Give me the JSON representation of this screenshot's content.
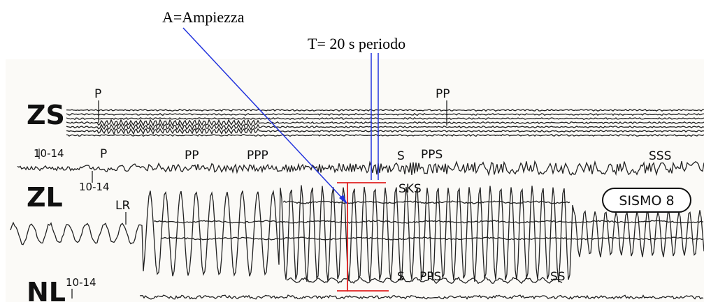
{
  "annotations": {
    "amplitude": "A=Ampiezza",
    "period": "T= 20 s periodo"
  },
  "seismogram": {
    "channels": [
      "ZS",
      "ZL",
      "NL"
    ],
    "time_marks": [
      "10-14",
      "10-14",
      "10-14"
    ],
    "phases": [
      "P",
      "PP",
      "P",
      "PP",
      "PPP",
      "S",
      "PPS",
      "SSS",
      "SKS",
      "LR",
      "S",
      "PPS",
      "SS"
    ],
    "stamp": "SISMO 8"
  }
}
